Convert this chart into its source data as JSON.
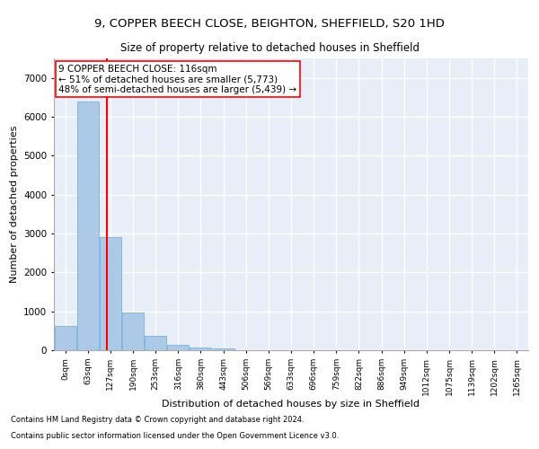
{
  "title1": "9, COPPER BEECH CLOSE, BEIGHTON, SHEFFIELD, S20 1HD",
  "title2": "Size of property relative to detached houses in Sheffield",
  "xlabel": "Distribution of detached houses by size in Sheffield",
  "ylabel": "Number of detached properties",
  "footnote1": "Contains HM Land Registry data © Crown copyright and database right 2024.",
  "footnote2": "Contains public sector information licensed under the Open Government Licence v3.0.",
  "annotation_line1": "9 COPPER BEECH CLOSE: 116sqm",
  "annotation_line2": "← 51% of detached houses are smaller (5,773)",
  "annotation_line3": "48% of semi-detached houses are larger (5,439) →",
  "bar_labels": [
    "0sqm",
    "63sqm",
    "127sqm",
    "190sqm",
    "253sqm",
    "316sqm",
    "380sqm",
    "443sqm",
    "506sqm",
    "569sqm",
    "633sqm",
    "696sqm",
    "759sqm",
    "822sqm",
    "886sqm",
    "949sqm",
    "1012sqm",
    "1075sqm",
    "1139sqm",
    "1202sqm",
    "1265sqm"
  ],
  "bar_values": [
    620,
    6400,
    2900,
    960,
    360,
    150,
    75,
    55,
    0,
    0,
    0,
    0,
    0,
    0,
    0,
    0,
    0,
    0,
    0,
    0,
    0
  ],
  "bar_color": "#adc9e8",
  "bar_edge_color": "#6aaad4",
  "red_line_x": 1.83,
  "ylim": [
    0,
    7500
  ],
  "yticks": [
    0,
    1000,
    2000,
    3000,
    4000,
    5000,
    6000,
    7000
  ],
  "bg_color": "#e8eef8",
  "grid_color": "#ffffff",
  "title1_fontsize": 9.5,
  "title2_fontsize": 8.5,
  "xlabel_fontsize": 8,
  "ylabel_fontsize": 8,
  "annotation_fontsize": 7.5,
  "footnote_fontsize": 6
}
